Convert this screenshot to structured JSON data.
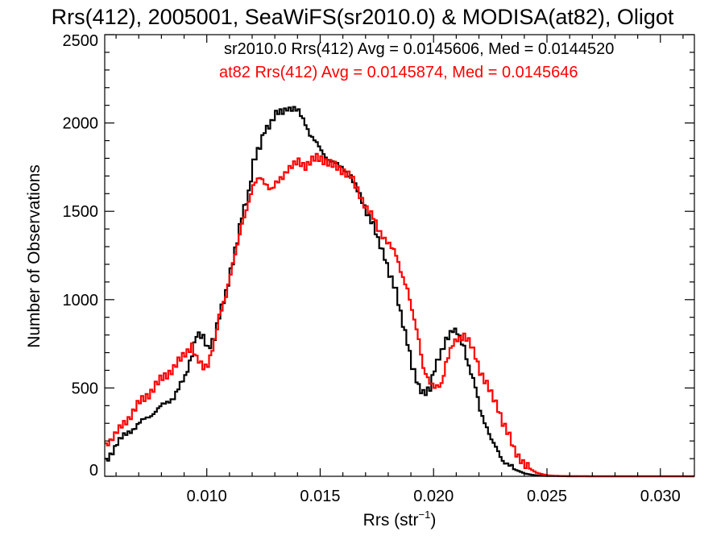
{
  "chart_data": {
    "type": "line",
    "title": "Rrs(412), 2005001, SeaWiFS(sr2010.0) & MODISA(at82), Oligot",
    "xlabel_main": "Rrs (str",
    "xlabel_sup": "−1",
    "xlabel_end": ")",
    "ylabel": "Number of Observations",
    "xlim": [
      0.0055,
      0.0315
    ],
    "ylim": [
      0,
      2500
    ],
    "x_ticks": [
      {
        "v": 0.01,
        "label": "0.010"
      },
      {
        "v": 0.015,
        "label": "0.015"
      },
      {
        "v": 0.02,
        "label": "0.020"
      },
      {
        "v": 0.025,
        "label": "0.025"
      },
      {
        "v": 0.03,
        "label": "0.030"
      }
    ],
    "y_ticks": [
      {
        "v": 0,
        "label": "0"
      },
      {
        "v": 500,
        "label": "500"
      },
      {
        "v": 1000,
        "label": "1000"
      },
      {
        "v": 1500,
        "label": "1500"
      },
      {
        "v": 2000,
        "label": "2000"
      },
      {
        "v": 2500,
        "label": "2500"
      }
    ],
    "annotations": [
      {
        "text": "sr2010.0 Rrs(412) Avg = 0.0145606, Med = 0.0144520",
        "color": "#000000"
      },
      {
        "text": "at82 Rrs(412) Avg = 0.0145874, Med = 0.0145646",
        "color": "#ff0000"
      }
    ],
    "series": [
      {
        "color": "#000000",
        "x": [
          0.0055,
          0.006,
          0.0065,
          0.007,
          0.0075,
          0.008,
          0.0085,
          0.009,
          0.0093,
          0.0095,
          0.0098,
          0.01,
          0.0103,
          0.0105,
          0.0108,
          0.011,
          0.0113,
          0.0115,
          0.0118,
          0.012,
          0.0123,
          0.0125,
          0.0128,
          0.013,
          0.0133,
          0.0135,
          0.0138,
          0.014,
          0.0143,
          0.0145,
          0.0148,
          0.015,
          0.0153,
          0.0155,
          0.0158,
          0.016,
          0.0163,
          0.0165,
          0.0168,
          0.017,
          0.0173,
          0.0175,
          0.0178,
          0.018,
          0.0183,
          0.0185,
          0.0188,
          0.019,
          0.0193,
          0.0195,
          0.0198,
          0.02,
          0.0203,
          0.0205,
          0.0208,
          0.021,
          0.0213,
          0.0215,
          0.0218,
          0.022,
          0.0223,
          0.0225,
          0.0228,
          0.023,
          0.0233,
          0.0235,
          0.0238,
          0.024,
          0.0243,
          0.0245,
          0.0248,
          0.025,
          0.0255,
          0.026,
          0.027,
          0.028,
          0.029,
          0.03,
          0.0315
        ],
        "y": [
          80,
          190,
          250,
          300,
          350,
          400,
          450,
          560,
          700,
          800,
          780,
          730,
          790,
          900,
          1040,
          1170,
          1330,
          1470,
          1610,
          1780,
          1860,
          1960,
          2010,
          2050,
          2060,
          2090,
          2080,
          2060,
          2000,
          1940,
          1880,
          1840,
          1800,
          1780,
          1750,
          1740,
          1700,
          1640,
          1560,
          1500,
          1420,
          1330,
          1250,
          1150,
          1040,
          920,
          770,
          620,
          500,
          480,
          500,
          600,
          710,
          780,
          820,
          810,
          740,
          620,
          500,
          380,
          280,
          200,
          140,
          95,
          60,
          40,
          25,
          15,
          8,
          5,
          3,
          2,
          1,
          0,
          0,
          0,
          0,
          0,
          0
        ]
      },
      {
        "color": "#ff0000",
        "x": [
          0.0055,
          0.006,
          0.0065,
          0.007,
          0.0075,
          0.008,
          0.0085,
          0.009,
          0.0093,
          0.0095,
          0.0098,
          0.01,
          0.0103,
          0.0105,
          0.0108,
          0.011,
          0.0113,
          0.0115,
          0.0118,
          0.012,
          0.0123,
          0.0125,
          0.0128,
          0.013,
          0.0133,
          0.0135,
          0.0138,
          0.014,
          0.0143,
          0.0145,
          0.0148,
          0.015,
          0.0153,
          0.0155,
          0.0158,
          0.016,
          0.0163,
          0.0165,
          0.0168,
          0.017,
          0.0173,
          0.0175,
          0.0178,
          0.018,
          0.0183,
          0.0185,
          0.0188,
          0.019,
          0.0193,
          0.0195,
          0.0198,
          0.02,
          0.0203,
          0.0205,
          0.0208,
          0.021,
          0.0213,
          0.0215,
          0.0218,
          0.022,
          0.0223,
          0.0225,
          0.0228,
          0.023,
          0.0233,
          0.0235,
          0.0238,
          0.024,
          0.0243,
          0.0245,
          0.0248,
          0.025,
          0.0255,
          0.026,
          0.027,
          0.028,
          0.029,
          0.03,
          0.0315
        ],
        "y": [
          180,
          250,
          330,
          420,
          480,
          560,
          610,
          700,
          740,
          660,
          620,
          640,
          760,
          900,
          1030,
          1150,
          1300,
          1430,
          1560,
          1640,
          1690,
          1670,
          1620,
          1650,
          1700,
          1740,
          1760,
          1780,
          1760,
          1780,
          1800,
          1800,
          1780,
          1760,
          1740,
          1730,
          1700,
          1640,
          1570,
          1520,
          1460,
          1400,
          1350,
          1310,
          1250,
          1170,
          1060,
          930,
          780,
          620,
          520,
          500,
          530,
          640,
          740,
          780,
          800,
          760,
          680,
          600,
          520,
          460,
          390,
          310,
          220,
          150,
          100,
          60,
          35,
          20,
          10,
          5,
          2,
          1,
          0,
          0,
          0,
          0,
          0
        ]
      }
    ]
  }
}
